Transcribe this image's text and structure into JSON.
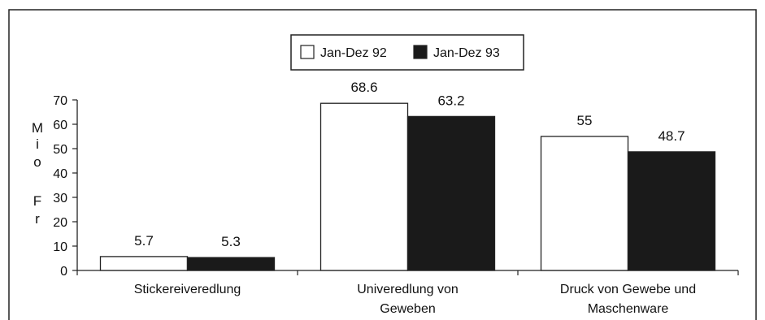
{
  "chart_data": {
    "type": "bar",
    "categories": [
      [
        "Stickereiveredlung"
      ],
      [
        "Univeredlung von",
        "Geweben"
      ],
      [
        "Druck von Gewebe und",
        "Maschenware"
      ]
    ],
    "series": [
      {
        "name": "Jan-Dez 92",
        "values": [
          5.7,
          68.6,
          55
        ],
        "labels": [
          "5.7",
          "68.6",
          "55"
        ],
        "color": "#ffffff"
      },
      {
        "name": "Jan-Dez 93",
        "values": [
          5.3,
          63.2,
          48.7
        ],
        "labels": [
          "5.3",
          "63.2",
          "48.7"
        ],
        "color": "#1a1a1a"
      }
    ],
    "ylabel": "Mio Fr",
    "ylim": [
      0,
      70
    ],
    "yticks": [
      0,
      10,
      20,
      30,
      40,
      50,
      60,
      70
    ],
    "grid": false,
    "legend": "top-center"
  }
}
